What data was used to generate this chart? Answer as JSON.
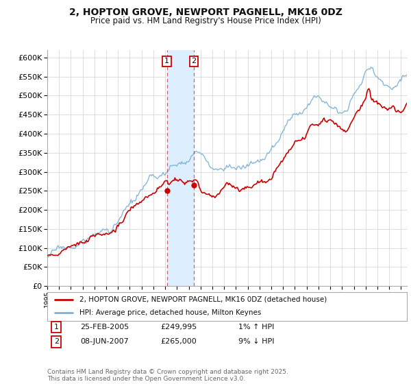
{
  "title": "2, HOPTON GROVE, NEWPORT PAGNELL, MK16 0DZ",
  "subtitle": "Price paid vs. HM Land Registry's House Price Index (HPI)",
  "legend_line1": "2, HOPTON GROVE, NEWPORT PAGNELL, MK16 0DZ (detached house)",
  "legend_line2": "HPI: Average price, detached house, Milton Keynes",
  "footer": "Contains HM Land Registry data © Crown copyright and database right 2025.\nThis data is licensed under the Open Government Licence v3.0.",
  "transaction1_label": "1",
  "transaction1_date": "25-FEB-2005",
  "transaction1_price": "£249,995",
  "transaction1_hpi": "1% ↑ HPI",
  "transaction2_label": "2",
  "transaction2_date": "08-JUN-2007",
  "transaction2_price": "£265,000",
  "transaction2_hpi": "9% ↓ HPI",
  "red_color": "#cc0000",
  "blue_color": "#7ab0d4",
  "shade_color": "#ddeeff",
  "marker1_x": 2005.15,
  "marker1_y": 249995,
  "marker2_x": 2007.44,
  "marker2_y": 265000,
  "vline1_x": 2005.15,
  "vline2_x": 2007.44,
  "ylim": [
    0,
    620000
  ],
  "xlim_start": 1995,
  "xlim_end": 2025.5,
  "background_color": "#ffffff",
  "grid_color": "#d8d8d8"
}
